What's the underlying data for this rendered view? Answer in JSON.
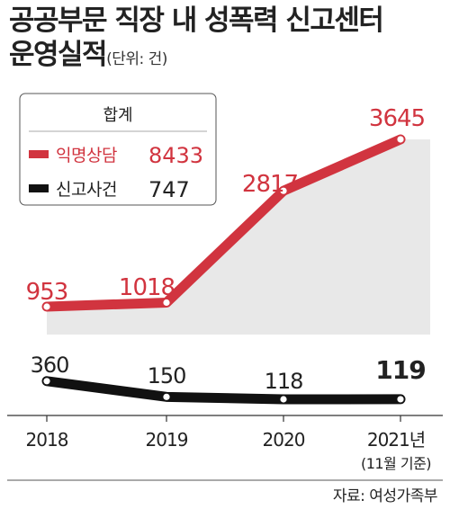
{
  "title": {
    "line1": "공공부문 직장 내 성폭력 신고센터",
    "line2": "운영실적",
    "unit": "(단위: 건)"
  },
  "source": "자료: 여성가족부",
  "chart_data": {
    "type": "line",
    "categories": [
      "2018",
      "2019",
      "2020",
      "2021년"
    ],
    "x_note": "(11월 기준)",
    "series": [
      {
        "name": "익명상담",
        "values": [
          953,
          1018,
          2817,
          3645
        ],
        "color": "#d1343f"
      },
      {
        "name": "신고사건",
        "values": [
          360,
          150,
          118,
          119
        ],
        "color": "#111111"
      }
    ],
    "legend": {
      "title": "합계",
      "placement": "top-left",
      "entries": [
        {
          "label": "익명상담",
          "total": "8433"
        },
        {
          "label": "신고사건",
          "total": "747"
        }
      ]
    },
    "data_labels": [
      [
        "953",
        "1018",
        "2817",
        "3645"
      ],
      [
        "360",
        "150",
        "118",
        "119"
      ]
    ],
    "colors": {
      "panel": "#e8e8e8",
      "axis": "#333333"
    },
    "grid": false
  }
}
